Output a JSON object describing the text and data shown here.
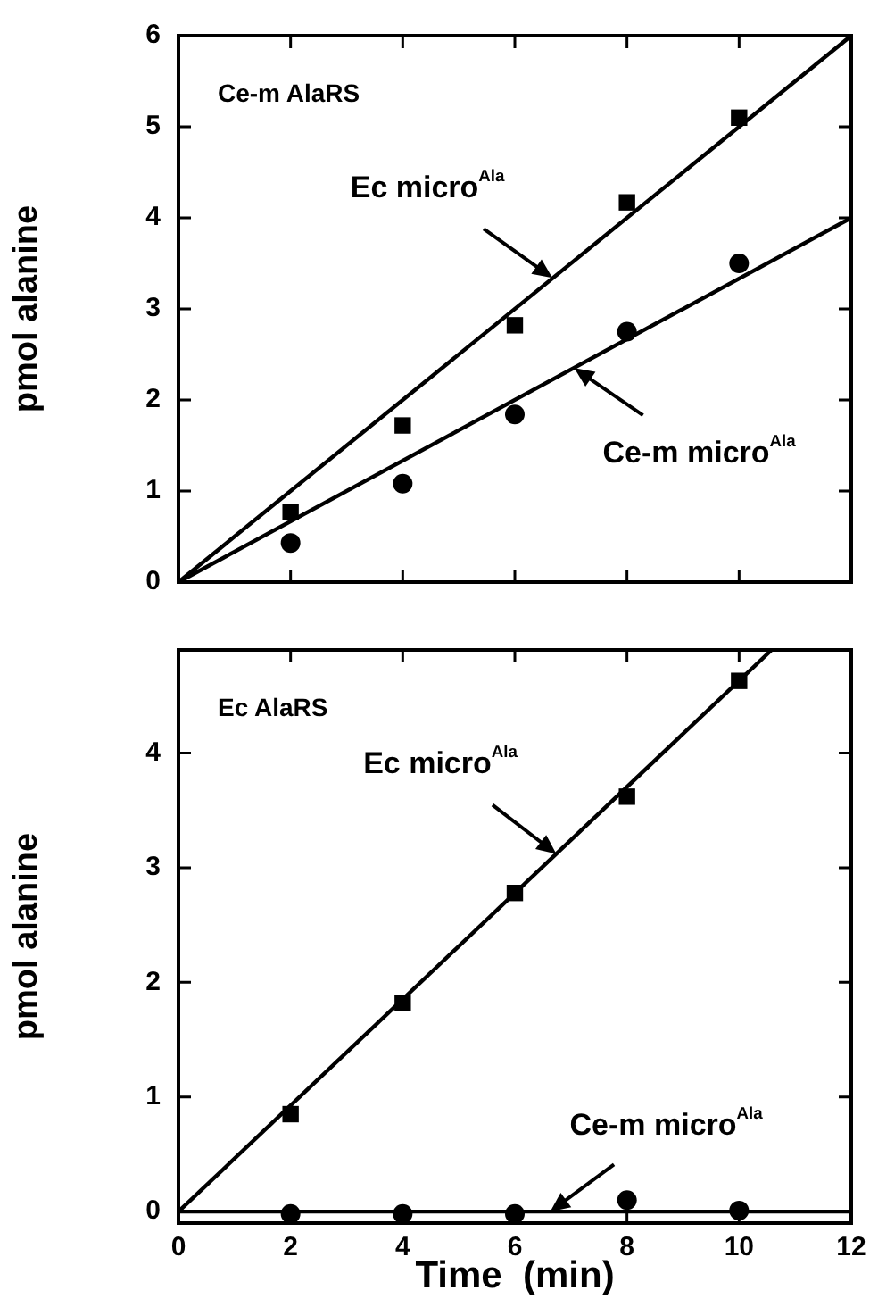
{
  "chart_data": [
    {
      "type": "scatter",
      "ylabel": "pmol alanine",
      "xlim": [
        0,
        12
      ],
      "xticks": [
        0,
        2,
        4,
        6,
        8,
        10,
        12
      ],
      "ylim": [
        0,
        6
      ],
      "yticks": [
        0,
        1,
        2,
        3,
        4,
        5,
        6
      ],
      "tick_labels": "y",
      "legend": false,
      "x": [
        2,
        4,
        6,
        8,
        10
      ],
      "series": [
        {
          "type": "scatter",
          "marker": "square",
          "color": "#000000",
          "values": [
            0.77,
            1.72,
            2.82,
            4.17,
            5.1
          ]
        },
        {
          "type": "scatter",
          "marker": "circle",
          "color": "#000000",
          "values": [
            0.43,
            1.08,
            1.84,
            2.75,
            3.5
          ]
        },
        {
          "type": "line",
          "marker": "none",
          "line_style": "solid",
          "color": "#000000",
          "x": [
            0,
            12
          ],
          "values": [
            0,
            6
          ]
        },
        {
          "type": "line",
          "marker": "none",
          "line_style": "solid",
          "color": "#000000",
          "x": [
            0,
            12
          ],
          "values": [
            0,
            4
          ]
        }
      ],
      "annotations": [
        "Ce-m AlaRS",
        {
          "text": "Ec micro$^{Ala}$",
          "x": 6.67,
          "y": 3.34
        },
        {
          "text": "Ce-m micro$^{Ala}$",
          "x": 7.06,
          "y": 2.35
        }
      ]
    },
    {
      "type": "scatter",
      "xlabel": "Time  (min)",
      "ylabel": "pmol alanine",
      "xlim": [
        0,
        12
      ],
      "xticks": [
        0,
        2,
        4,
        6,
        8,
        10,
        12
      ],
      "ylim": [
        -0.1,
        4.9
      ],
      "yticks": [
        0,
        1,
        2,
        3,
        4
      ],
      "legend": false,
      "x": [
        2,
        4,
        6,
        8,
        10
      ],
      "series": [
        {
          "type": "scatter",
          "marker": "square",
          "color": "#000000",
          "values": [
            0.85,
            1.82,
            2.78,
            3.62,
            4.63
          ]
        },
        {
          "type": "scatter",
          "marker": "circle",
          "color": "#000000",
          "values": [
            -0.02,
            -0.02,
            -0.02,
            0.1,
            0.01
          ]
        },
        {
          "type": "line",
          "marker": "none",
          "line_style": "solid",
          "color": "#000000",
          "x": [
            0,
            10.58
          ],
          "values": [
            0,
            4.9
          ]
        },
        {
          "type": "line",
          "marker": "none",
          "line_style": "solid",
          "color": "#000000",
          "x": [
            0,
            12
          ],
          "values": [
            0,
            0
          ]
        }
      ],
      "annotations": [
        "Ec AlaRS",
        {
          "text": "Ec micro$^{Ala}$",
          "x": 6.74,
          "y": 3.12
        },
        {
          "text": "Ce-m micro$^{Ala}$",
          "x": 6.63,
          "y": 0
        }
      ]
    }
  ]
}
